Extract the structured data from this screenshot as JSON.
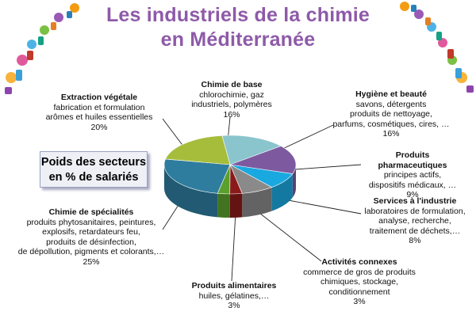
{
  "title_line1": "Les industriels de la chimie",
  "title_line2": "en Méditerranée",
  "legend": {
    "line1": "Poids des secteurs",
    "line2": "en % de salariés"
  },
  "colors": {
    "title": "#8e5aa8"
  },
  "chart_data": {
    "type": "pie",
    "title": "",
    "unit": "% de salariés",
    "slices": [
      {
        "name": "Chimie de base",
        "desc": [
          "chlorochimie, gaz",
          "industriels, polymères"
        ],
        "value": 16,
        "label": "16%",
        "color": "#8ac4cc"
      },
      {
        "name": "Hygiène et beauté",
        "desc": [
          "savons, détergents",
          "produits de nettoyage,",
          "parfums, cosmétiques, cires, …"
        ],
        "value": 16,
        "label": "16%",
        "color": "#7d5aa0"
      },
      {
        "name": "Produits pharmaceutiques",
        "desc": [
          "principes actifs,",
          "dispositifs médicaux, …"
        ],
        "value": 9,
        "label": "9%",
        "color": "#1aa8e0"
      },
      {
        "name": "Services à l'industrie",
        "desc": [
          "laboratoires de formulation,",
          "analyse, recherche,",
          "traitement de  déchets,…"
        ],
        "value": 8,
        "label": "8%",
        "color": "#8a8a8a"
      },
      {
        "name": "Activités connexes",
        "desc": [
          "commerce de gros de produits",
          "chimiques, stockage,",
          "conditionnement"
        ],
        "value": 3,
        "label": "3%",
        "color": "#8b1a1a"
      },
      {
        "name": "Produits alimentaires",
        "desc": [
          "huiles, gélatines,…"
        ],
        "value": 3,
        "label": "3%",
        "color": "#5aa02c"
      },
      {
        "name": "Chimie de spécialités",
        "desc": [
          "produits phytosanitaires, peintures,",
          "explosifs, retardateurs feu,",
          "produits de désinfection,",
          "de dépollution, pigments et colorants,…"
        ],
        "value": 25,
        "label": "25%",
        "color": "#2e7d9e"
      },
      {
        "name": "Extraction végétale",
        "desc": [
          "fabrication et formulation",
          "arômes et huiles essentielles"
        ],
        "value": 20,
        "label": "20%",
        "color": "#a6bd3c"
      }
    ]
  }
}
